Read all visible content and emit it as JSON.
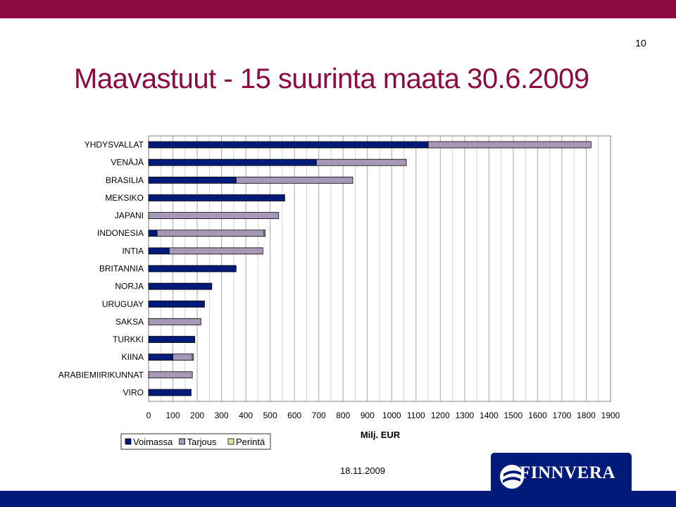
{
  "page": {
    "number": "10",
    "title": "Maavastuut - 15 suurinta maata 30.6.2009",
    "date": "18.11.2009",
    "logo": "FINNVERA"
  },
  "colors": {
    "header_bar": "#8c0a3f",
    "title": "#8c0a3f",
    "footer_bar": "#001a7a",
    "Voimassa": "#001a7a",
    "Tarjous": "#a898b8",
    "Perintä": "#e0e8a0"
  },
  "chart_data": {
    "type": "bar",
    "orientation": "horizontal",
    "stacked": true,
    "categories": [
      "YHDYSVALLAT",
      "VENÄJÄ",
      "BRASILIA",
      "MEKSIKO",
      "JAPANI",
      "INDONESIA",
      "INTIA",
      "BRITANNIA",
      "NORJA",
      "URUGUAY",
      "SAKSA",
      "TURKKI",
      "KIINA",
      "ARABIEMIIRIKUNNAT",
      "VIRO"
    ],
    "series": [
      {
        "name": "Voimassa",
        "values": [
          1150,
          690,
          360,
          560,
          0,
          35,
          85,
          360,
          260,
          230,
          0,
          190,
          100,
          0,
          175
        ]
      },
      {
        "name": "Tarjous",
        "values": [
          670,
          370,
          480,
          0,
          535,
          440,
          385,
          0,
          0,
          0,
          215,
          0,
          80,
          180,
          0
        ]
      },
      {
        "name": "Perintä",
        "values": [
          0,
          0,
          0,
          0,
          0,
          5,
          0,
          0,
          0,
          0,
          0,
          0,
          5,
          0,
          0
        ]
      }
    ],
    "xlabel": "Milj. EUR",
    "xlim": [
      0,
      1900
    ],
    "xticks": [
      0,
      100,
      200,
      300,
      400,
      500,
      600,
      700,
      800,
      900,
      1000,
      1100,
      1200,
      1300,
      1400,
      1500,
      1600,
      1700,
      1800,
      1900
    ],
    "grid": true,
    "legend": "bottom-left"
  }
}
